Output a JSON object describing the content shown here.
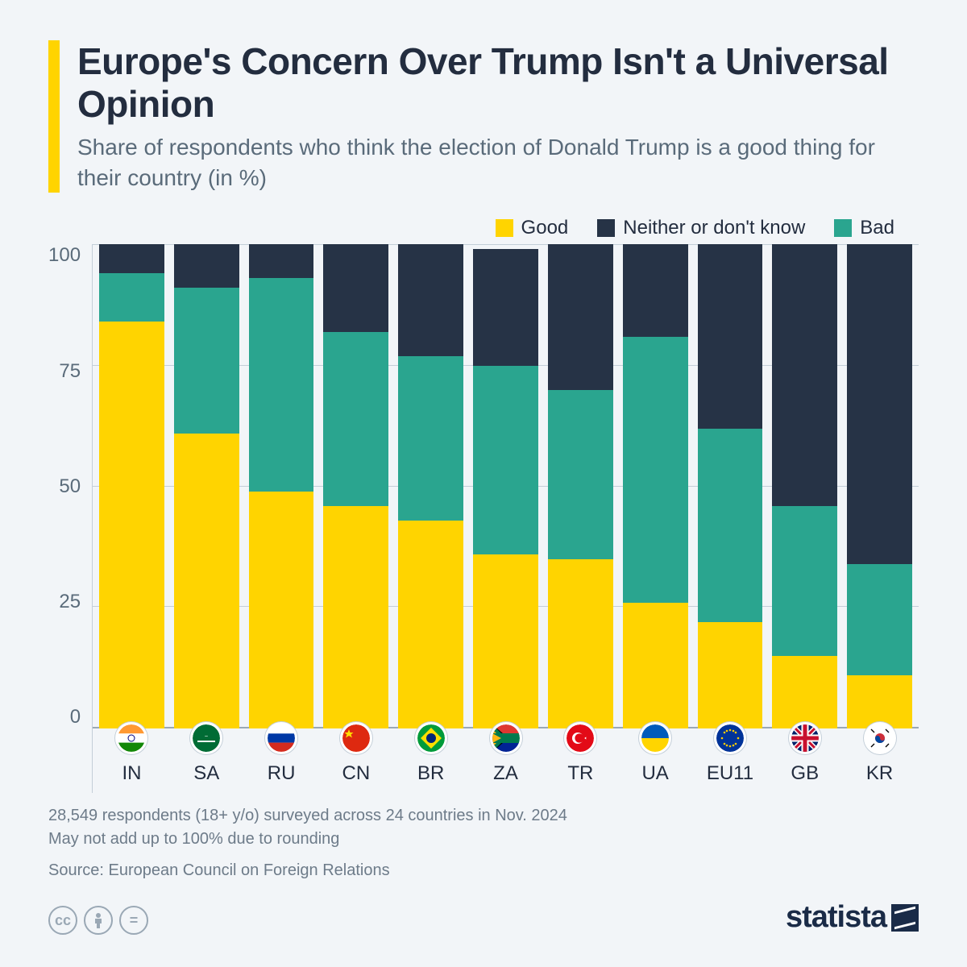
{
  "title": "Europe's Concern Over Trump Isn't a Universal Opinion",
  "subtitle": "Share of respondents who think the election of Donald Trump is a good thing for their country (in %)",
  "legend": {
    "good": "Good",
    "neither": "Neither or don't know",
    "bad": "Bad"
  },
  "colors": {
    "good": "#ffd400",
    "bad": "#2aa58f",
    "neither": "#263346",
    "background": "#f2f5f8",
    "grid": "#c3ced8",
    "title_text": "#232d3f",
    "subtitle_text": "#5a6b7a"
  },
  "chart": {
    "type": "stacked-bar",
    "y_max": 100,
    "y_ticks": [
      100,
      75,
      50,
      25,
      0
    ],
    "bars": [
      {
        "code": "IN",
        "flag": "in",
        "good": 84,
        "bad": 10,
        "neither": 6
      },
      {
        "code": "SA",
        "flag": "sa",
        "good": 61,
        "bad": 30,
        "neither": 9
      },
      {
        "code": "RU",
        "flag": "ru",
        "good": 49,
        "bad": 44,
        "neither": 7
      },
      {
        "code": "CN",
        "flag": "cn",
        "good": 46,
        "bad": 36,
        "neither": 18
      },
      {
        "code": "BR",
        "flag": "br",
        "good": 43,
        "bad": 34,
        "neither": 23
      },
      {
        "code": "ZA",
        "flag": "za",
        "good": 36,
        "bad": 39,
        "neither": 24
      },
      {
        "code": "TR",
        "flag": "tr",
        "good": 35,
        "bad": 35,
        "neither": 30
      },
      {
        "code": "UA",
        "flag": "ua",
        "good": 26,
        "bad": 55,
        "neither": 19
      },
      {
        "code": "EU11",
        "flag": "eu",
        "good": 22,
        "bad": 40,
        "neither": 38
      },
      {
        "code": "GB",
        "flag": "gb",
        "good": 15,
        "bad": 31,
        "neither": 54
      },
      {
        "code": "KR",
        "flag": "kr",
        "good": 11,
        "bad": 23,
        "neither": 66
      }
    ]
  },
  "footnote1": "28,549 respondents (18+ y/o) surveyed across 24 countries in Nov. 2024",
  "footnote2": "May not add up to 100% due to rounding",
  "source": "Source: European Council on Foreign Relations",
  "brand": "statista",
  "flag_svgs": {
    "in": "<svg viewBox='0 0 34 34'><rect width='34' height='11.3' fill='#ff9933'/><rect y='11.3' width='34' height='11.3' fill='#fff'/><rect y='22.6' width='34' height='11.3' fill='#138808'/><circle cx='17' cy='17' r='4' fill='none' stroke='#000080' stroke-width='1'/></svg>",
    "sa": "<svg viewBox='0 0 34 34'><rect width='34' height='34' fill='#006c35'/><rect x='6' y='20' width='22' height='2' fill='#fff'/><text x='17' y='15' font-size='6' fill='#fff' text-anchor='middle'>ــ</text></svg>",
    "ru": "<svg viewBox='0 0 34 34'><rect width='34' height='11.3' fill='#fff'/><rect y='11.3' width='34' height='11.3' fill='#0039a6'/><rect y='22.6' width='34' height='11.3' fill='#d52b1e'/></svg>",
    "cn": "<svg viewBox='0 0 34 34'><rect width='34' height='34' fill='#de2910'/><polygon points='8,6 9.5,10 13.5,10 10.5,12.5 12,16.5 8,14 4,16.5 5.5,12.5 2.5,10 6.5,10' fill='#ffde00'/></svg>",
    "br": "<svg viewBox='0 0 34 34'><rect width='34' height='34' fill='#009b3a'/><polygon points='17,4 30,17 17,30 4,17' fill='#fedf00'/><circle cx='17' cy='17' r='6' fill='#002776'/></svg>",
    "za": "<svg viewBox='0 0 34 34'><rect width='34' height='34' fill='#fff'/><rect y='0' width='34' height='11' fill='#de3831'/><rect y='23' width='34' height='11' fill='#002395'/><polygon points='0,0 20,17 0,34' fill='#000'/><polygon points='0,3 16,17 0,31' fill='#ffb612'/><path d='M0,0 L17,17 L0,34 L0,28 L11,17 L0,6 Z M0,11 L34,11 L34,23 L0,23 L11,17 Z' fill='#007a4d'/></svg>",
    "tr": "<svg viewBox='0 0 34 34'><rect width='34' height='34' fill='#e30a17'/><circle cx='14' cy='17' r='7' fill='#fff'/><circle cx='16' cy='17' r='5.6' fill='#e30a17'/><polygon points='22,17 25,15.5 23,18.5 23,15.5 25,18.5' fill='#fff'/></svg>",
    "ua": "<svg viewBox='0 0 34 34'><rect width='34' height='17' fill='#005bbb'/><rect y='17' width='34' height='17' fill='#ffd500'/></svg>",
    "eu": "<svg viewBox='0 0 34 34'><rect width='34' height='34' fill='#003399'/><g fill='#ffcc00'><circle cx='17' cy='7' r='1.3'/><circle cx='17' cy='27' r='1.3'/><circle cx='7' cy='17' r='1.3'/><circle cx='27' cy='17' r='1.3'/><circle cx='10' cy='10' r='1.3'/><circle cx='24' cy='10' r='1.3'/><circle cx='10' cy='24' r='1.3'/><circle cx='24' cy='24' r='1.3'/><circle cx='13' cy='8' r='1.3'/><circle cx='21' cy='8' r='1.3'/><circle cx='13' cy='26' r='1.3'/><circle cx='21' cy='26' r='1.3'/></g></svg>",
    "gb": "<svg viewBox='0 0 34 34'><rect width='34' height='34' fill='#012169'/><path d='M0,0 L34,34 M34,0 L0,34' stroke='#fff' stroke-width='6'/><path d='M0,0 L34,34 M34,0 L0,34' stroke='#c8102e' stroke-width='3'/><path d='M17,0 L17,34 M0,17 L34,17' stroke='#fff' stroke-width='9'/><path d='M17,0 L17,34 M0,17 L34,17' stroke='#c8102e' stroke-width='5'/></svg>",
    "kr": "<svg viewBox='0 0 34 34'><rect width='34' height='34' fill='#fff'/><circle cx='17' cy='17' r='6' fill='#cd2e3a'/><path d='M11,17 a6,6 0 0,0 12,0 a3,3 0 0,1 -6,0 a3,3 0 0,0 -6,0' fill='#0047a0'/><g stroke='#000' stroke-width='1.3'><line x1='6' y1='6' x2='10' y2='10'/><line x1='24' y1='6' x2='28' y2='10'/><line x1='6' y1='28' x2='10' y2='24'/><line x1='24' y1='28' x2='28' y2='24'/></g></svg>"
  }
}
